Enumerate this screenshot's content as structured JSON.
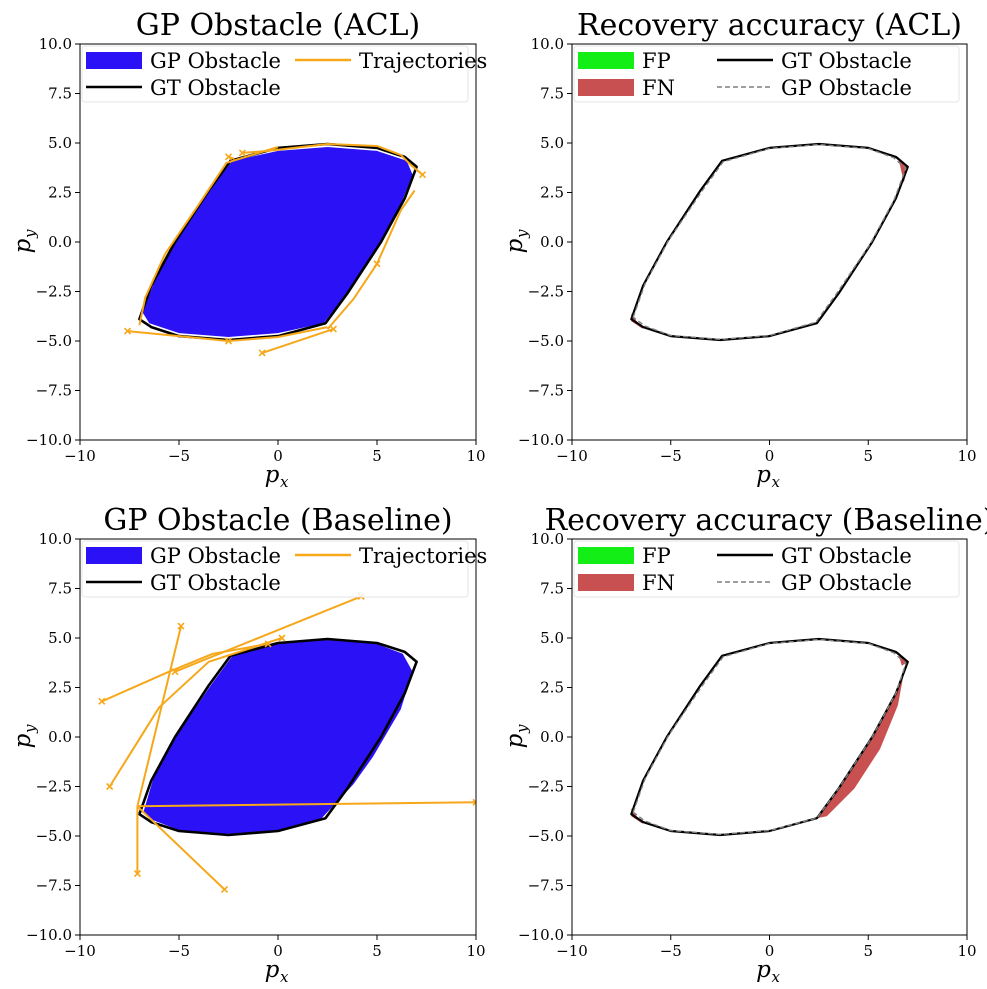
{
  "chart_data": [
    {
      "id": "acl-gp",
      "type": "region-plot",
      "title": "GP Obstacle (ACL)",
      "xlabel": "p",
      "xlabel_sub": "x",
      "ylabel": "p",
      "ylabel_sub": "y",
      "xlim": [
        -10,
        10
      ],
      "ylim": [
        -10,
        10
      ],
      "xticks": [
        -10,
        -5,
        0,
        5,
        10
      ],
      "xtick_labels": [
        "−10",
        "−5",
        "0",
        "5",
        "10"
      ],
      "yticks": [
        -10,
        -7.5,
        -5,
        -2.5,
        0,
        2.5,
        5,
        7.5,
        10
      ],
      "ytick_labels": [
        "−10.0",
        "−7.5",
        "−5.0",
        "−2.5",
        "0.0",
        "2.5",
        "5.0",
        "7.5",
        "10.0"
      ],
      "legend": {
        "placement": "top",
        "entries": [
          {
            "label": "GP Obstacle",
            "kind": "patch",
            "color": "#2b12f6"
          },
          {
            "label": "GT Obstacle",
            "kind": "line",
            "color": "#000000"
          },
          {
            "label": "Trajectories",
            "kind": "line",
            "color": "#f6a71a"
          }
        ]
      },
      "gt_obstacle": [
        [
          -7,
          -3.9
        ],
        [
          -6.4,
          -2.2
        ],
        [
          -5.2,
          0
        ],
        [
          -3.5,
          2.6
        ],
        [
          -2.4,
          4.1
        ],
        [
          0,
          4.75
        ],
        [
          2.5,
          4.95
        ],
        [
          5,
          4.75
        ],
        [
          6.4,
          4.3
        ],
        [
          7,
          3.8
        ],
        [
          6.4,
          2.2
        ],
        [
          5.2,
          0
        ],
        [
          3.5,
          -2.6
        ],
        [
          2.4,
          -4.1
        ],
        [
          0,
          -4.75
        ],
        [
          -2.5,
          -4.95
        ],
        [
          -5,
          -4.75
        ],
        [
          -6.4,
          -4.3
        ]
      ],
      "gp_obstacle": [
        [
          -6.85,
          -3.55
        ],
        [
          -6.2,
          -1.9
        ],
        [
          -5,
          0.3
        ],
        [
          -3.4,
          2.7
        ],
        [
          -2.3,
          4.1
        ],
        [
          0,
          4.6
        ],
        [
          2.5,
          4.8
        ],
        [
          5,
          4.6
        ],
        [
          6.5,
          4.1
        ],
        [
          6.8,
          3.4
        ],
        [
          6.2,
          1.9
        ],
        [
          5,
          -0.3
        ],
        [
          3.4,
          -2.7
        ],
        [
          2.3,
          -4.1
        ],
        [
          0,
          -4.6
        ],
        [
          -2.5,
          -4.8
        ],
        [
          -5,
          -4.6
        ],
        [
          -6.5,
          -4.1
        ]
      ],
      "trajectories": [
        [
          [
            -2.5,
            4.3
          ],
          [
            -2.2,
            4.2
          ]
        ],
        [
          [
            -1.8,
            4.5
          ],
          [
            -0.5,
            4.6
          ],
          [
            2.5,
            4.95
          ],
          [
            5,
            4.85
          ],
          [
            6.2,
            4.4
          ],
          [
            6.7,
            3.9
          ],
          [
            7.3,
            3.4
          ]
        ],
        [
          [
            6.9,
            2.6
          ],
          [
            6.2,
            1.6
          ],
          [
            5,
            -1.1
          ],
          [
            3.8,
            -2.9
          ],
          [
            2.5,
            -4.4
          ]
        ],
        [
          [
            -0.8,
            -5.6
          ],
          [
            2.8,
            -4.4
          ]
        ],
        [
          [
            -7.6,
            -4.5
          ],
          [
            -5,
            -4.75
          ],
          [
            -2.5,
            -5.0
          ],
          [
            0,
            -4.8
          ],
          [
            2.5,
            -4.3
          ]
        ],
        [
          [
            -7,
            -4.2
          ],
          [
            -6.7,
            -2.8
          ],
          [
            -5.7,
            -0.6
          ],
          [
            -4,
            1.9
          ],
          [
            -2.6,
            4.0
          ],
          [
            0,
            4.8
          ]
        ]
      ],
      "markers": [
        [
          -2.5,
          4.3
        ],
        [
          -1.8,
          4.5
        ],
        [
          7.3,
          3.4
        ],
        [
          5,
          -1.1
        ],
        [
          -7.6,
          -4.5
        ],
        [
          -2.5,
          -5.0
        ],
        [
          -0.8,
          -5.6
        ],
        [
          2.8,
          -4.4
        ]
      ]
    },
    {
      "id": "acl-acc",
      "type": "region-plot",
      "title": "Recovery accuracy (ACL)",
      "xlabel": "p",
      "xlabel_sub": "x",
      "ylabel": "p",
      "ylabel_sub": "y",
      "xlim": [
        -10,
        10
      ],
      "ylim": [
        -10,
        10
      ],
      "xticks": [
        -10,
        -5,
        0,
        5,
        10
      ],
      "xtick_labels": [
        "−10",
        "−5",
        "0",
        "5",
        "10"
      ],
      "yticks": [
        -10,
        -7.5,
        -5,
        -2.5,
        0,
        2.5,
        5,
        7.5,
        10
      ],
      "ytick_labels": [
        "−10.0",
        "−7.5",
        "−5.0",
        "−2.5",
        "0.0",
        "2.5",
        "5.0",
        "7.5",
        "10.0"
      ],
      "legend": {
        "placement": "top",
        "entries": [
          {
            "label": "FP",
            "kind": "patch",
            "color": "#12ee16"
          },
          {
            "label": "FN",
            "kind": "patch",
            "color": "#c95050"
          },
          {
            "label": "GT Obstacle",
            "kind": "line",
            "color": "#000000"
          },
          {
            "label": "GP Obstacle",
            "kind": "dashed",
            "color": "#7f7f7f"
          }
        ]
      },
      "gt_obstacle": [
        [
          -7,
          -3.9
        ],
        [
          -6.4,
          -2.2
        ],
        [
          -5.2,
          0
        ],
        [
          -3.5,
          2.6
        ],
        [
          -2.4,
          4.1
        ],
        [
          0,
          4.75
        ],
        [
          2.5,
          4.95
        ],
        [
          5,
          4.75
        ],
        [
          6.4,
          4.3
        ],
        [
          7,
          3.8
        ],
        [
          6.4,
          2.2
        ],
        [
          5.2,
          0
        ],
        [
          3.5,
          -2.6
        ],
        [
          2.4,
          -4.1
        ],
        [
          0,
          -4.75
        ],
        [
          -2.5,
          -4.95
        ],
        [
          -5,
          -4.75
        ],
        [
          -6.4,
          -4.3
        ]
      ],
      "gp_obstacle": [
        [
          -6.9,
          -3.8
        ],
        [
          -6.3,
          -2.1
        ],
        [
          -5.1,
          0.1
        ],
        [
          -3.4,
          2.6
        ],
        [
          -2.35,
          4.05
        ],
        [
          0,
          4.72
        ],
        [
          2.5,
          4.92
        ],
        [
          5,
          4.72
        ],
        [
          6.3,
          4.25
        ],
        [
          6.9,
          3.7
        ],
        [
          6.3,
          2.1
        ],
        [
          5.1,
          -0.1
        ],
        [
          3.4,
          -2.6
        ],
        [
          2.35,
          -4.05
        ],
        [
          0,
          -4.72
        ],
        [
          -2.5,
          -4.92
        ],
        [
          -5,
          -4.72
        ],
        [
          -6.3,
          -4.25
        ]
      ],
      "fn_regions": [
        [
          [
            6.5,
            4.3
          ],
          [
            7,
            3.8
          ],
          [
            6.8,
            3.0
          ],
          [
            6.6,
            3.9
          ]
        ],
        [
          [
            -7,
            -3.6
          ],
          [
            -7,
            -4.0
          ],
          [
            -6.4,
            -4.4
          ],
          [
            -6.8,
            -3.9
          ]
        ]
      ]
    },
    {
      "id": "baseline-gp",
      "type": "region-plot",
      "title": "GP Obstacle (Baseline)",
      "xlabel": "p",
      "xlabel_sub": "x",
      "ylabel": "p",
      "ylabel_sub": "y",
      "xlim": [
        -10,
        10
      ],
      "ylim": [
        -10,
        10
      ],
      "xticks": [
        -10,
        -5,
        0,
        5,
        10
      ],
      "xtick_labels": [
        "−10",
        "−5",
        "0",
        "5",
        "10"
      ],
      "yticks": [
        -10,
        -7.5,
        -5,
        -2.5,
        0,
        2.5,
        5,
        7.5,
        10
      ],
      "ytick_labels": [
        "−10.0",
        "−7.5",
        "−5.0",
        "−2.5",
        "0.0",
        "2.5",
        "5.0",
        "7.5",
        "10.0"
      ],
      "legend": {
        "placement": "top",
        "entries": [
          {
            "label": "GP Obstacle",
            "kind": "patch",
            "color": "#2b12f6"
          },
          {
            "label": "GT Obstacle",
            "kind": "line",
            "color": "#000000"
          },
          {
            "label": "Trajectories",
            "kind": "line",
            "color": "#f6a71a"
          }
        ]
      },
      "gt_obstacle": [
        [
          -7,
          -3.9
        ],
        [
          -6.4,
          -2.2
        ],
        [
          -5.2,
          0
        ],
        [
          -3.5,
          2.6
        ],
        [
          -2.4,
          4.1
        ],
        [
          0,
          4.75
        ],
        [
          2.5,
          4.95
        ],
        [
          5,
          4.75
        ],
        [
          6.4,
          4.3
        ],
        [
          7,
          3.8
        ],
        [
          6.4,
          2.2
        ],
        [
          5.2,
          0
        ],
        [
          3.5,
          -2.6
        ],
        [
          2.4,
          -4.1
        ],
        [
          0,
          -4.75
        ],
        [
          -2.5,
          -4.95
        ],
        [
          -5,
          -4.75
        ],
        [
          -6.4,
          -4.3
        ]
      ],
      "gp_obstacle": [
        [
          -6.8,
          -3.8
        ],
        [
          -6.3,
          -2.1
        ],
        [
          -5.1,
          0.1
        ],
        [
          -3.4,
          2.6
        ],
        [
          -2.3,
          4.1
        ],
        [
          0,
          4.7
        ],
        [
          2.5,
          4.9
        ],
        [
          5,
          4.7
        ],
        [
          6.3,
          4.2
        ],
        [
          6.8,
          3.3
        ],
        [
          6.2,
          1.4
        ],
        [
          4.8,
          -1.0
        ],
        [
          3.8,
          -2.4
        ],
        [
          2.2,
          -4.1
        ],
        [
          0,
          -4.7
        ],
        [
          -2.5,
          -4.9
        ],
        [
          -5,
          -4.7
        ],
        [
          -6.3,
          -4.2
        ]
      ],
      "trajectories": [
        [
          [
            -8.9,
            1.8
          ],
          [
            -5.5,
            3.3
          ],
          [
            -3.3,
            4.2
          ],
          [
            -0.5,
            4.7
          ]
        ],
        [
          [
            -5.2,
            3.3
          ],
          [
            4.2,
            7.1
          ]
        ],
        [
          [
            -4.9,
            5.6
          ],
          [
            -7.1,
            -3.5
          ]
        ],
        [
          [
            -8.5,
            -2.5
          ],
          [
            -6,
            1.5
          ],
          [
            -3.5,
            3.8
          ],
          [
            0.2,
            5.0
          ]
        ],
        [
          [
            -7.1,
            -3.5
          ],
          [
            10,
            -3.3
          ]
        ],
        [
          [
            -7.1,
            -3.5
          ],
          [
            -2.7,
            -7.7
          ]
        ],
        [
          [
            -7.1,
            -6.9
          ],
          [
            -7.1,
            -3.5
          ]
        ]
      ],
      "markers": [
        [
          -8.9,
          1.8
        ],
        [
          4.2,
          7.1
        ],
        [
          -4.9,
          5.6
        ],
        [
          -8.5,
          -2.5
        ],
        [
          0.2,
          5.0
        ],
        [
          -0.5,
          4.7
        ],
        [
          -2.7,
          -7.7
        ],
        [
          -7.1,
          -6.9
        ],
        [
          10,
          -3.3
        ],
        [
          -5.2,
          3.3
        ]
      ]
    },
    {
      "id": "baseline-acc",
      "type": "region-plot",
      "title": "Recovery accuracy (Baseline)",
      "xlabel": "p",
      "xlabel_sub": "x",
      "ylabel": "p",
      "ylabel_sub": "y",
      "xlim": [
        -10,
        10
      ],
      "ylim": [
        -10,
        10
      ],
      "xticks": [
        -10,
        -5,
        0,
        5,
        10
      ],
      "xtick_labels": [
        "−10",
        "−5",
        "0",
        "5",
        "10"
      ],
      "yticks": [
        -10,
        -7.5,
        -5,
        -2.5,
        0,
        2.5,
        5,
        7.5,
        10
      ],
      "ytick_labels": [
        "−10.0",
        "−7.5",
        "−5.0",
        "−2.5",
        "0.0",
        "2.5",
        "5.0",
        "7.5",
        "10.0"
      ],
      "legend": {
        "placement": "top",
        "entries": [
          {
            "label": "FP",
            "kind": "patch",
            "color": "#12ee16"
          },
          {
            "label": "FN",
            "kind": "patch",
            "color": "#c95050"
          },
          {
            "label": "GT Obstacle",
            "kind": "line",
            "color": "#000000"
          },
          {
            "label": "GP Obstacle",
            "kind": "dashed",
            "color": "#7f7f7f"
          }
        ]
      },
      "gt_obstacle": [
        [
          -7,
          -3.9
        ],
        [
          -6.4,
          -2.2
        ],
        [
          -5.2,
          0
        ],
        [
          -3.5,
          2.6
        ],
        [
          -2.4,
          4.1
        ],
        [
          0,
          4.75
        ],
        [
          2.5,
          4.95
        ],
        [
          5,
          4.75
        ],
        [
          6.4,
          4.3
        ],
        [
          7,
          3.8
        ],
        [
          6.4,
          2.2
        ],
        [
          5.2,
          0
        ],
        [
          3.5,
          -2.6
        ],
        [
          2.4,
          -4.1
        ],
        [
          0,
          -4.75
        ],
        [
          -2.5,
          -4.95
        ],
        [
          -5,
          -4.75
        ],
        [
          -6.4,
          -4.3
        ]
      ],
      "gp_obstacle": [
        [
          -6.9,
          -3.8
        ],
        [
          -6.3,
          -2.1
        ],
        [
          -5.1,
          0.1
        ],
        [
          -3.4,
          2.6
        ],
        [
          -2.35,
          4.05
        ],
        [
          0,
          4.72
        ],
        [
          2.5,
          4.92
        ],
        [
          5,
          4.72
        ],
        [
          6.3,
          4.25
        ],
        [
          6.9,
          3.7
        ],
        [
          6.4,
          2.2
        ],
        [
          5.2,
          0
        ],
        [
          3.5,
          -2.6
        ],
        [
          2.4,
          -4.1
        ],
        [
          0,
          -4.72
        ],
        [
          -2.5,
          -4.92
        ],
        [
          -5,
          -4.72
        ],
        [
          -6.3,
          -4.25
        ]
      ],
      "fn_regions": [
        [
          [
            7,
            3.8
          ],
          [
            6.4,
            2.2
          ],
          [
            5.2,
            0
          ],
          [
            3.5,
            -2.6
          ],
          [
            2.4,
            -4.1
          ],
          [
            2.9,
            -4.0
          ],
          [
            4.3,
            -2.6
          ],
          [
            5.6,
            -0.6
          ],
          [
            6.5,
            1.6
          ],
          [
            6.8,
            3.2
          ]
        ],
        [
          [
            6.5,
            4.3
          ],
          [
            7,
            3.8
          ],
          [
            6.7,
            3.6
          ]
        ],
        [
          [
            -7,
            -3.6
          ],
          [
            -7,
            -4.0
          ],
          [
            -6.4,
            -4.4
          ],
          [
            -6.8,
            -3.9
          ]
        ]
      ]
    }
  ]
}
